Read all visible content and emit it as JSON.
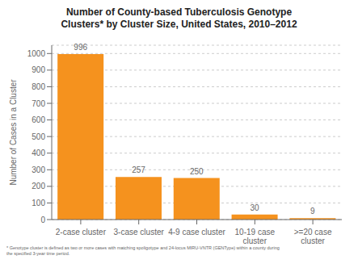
{
  "chart_data": {
    "type": "bar",
    "title": "Number of County-based Tuberculosis Genotype\nClusters* by Cluster Size, United States, 2010–2012",
    "categories": [
      "2-case cluster",
      "3-case cluster",
      "4-9 case cluster",
      "10-19 case\ncluster",
      ">=20 case\ncluster"
    ],
    "values": [
      996,
      257,
      250,
      30,
      9
    ],
    "color": "#F5921E",
    "ylabel": "Number of Cases in a Cluster",
    "ylim": [
      0,
      1050
    ],
    "yticks": [
      0,
      100,
      200,
      300,
      400,
      500,
      600,
      700,
      800,
      900,
      1000
    ],
    "grid": true,
    "data_labels": true,
    "annotations": [
      "* Genotype cluster is defined as two or more cases with matching spoligotype and 24-locus MIRU-VNTR (GENType) within a county during",
      "the specified 3-year time period."
    ]
  }
}
